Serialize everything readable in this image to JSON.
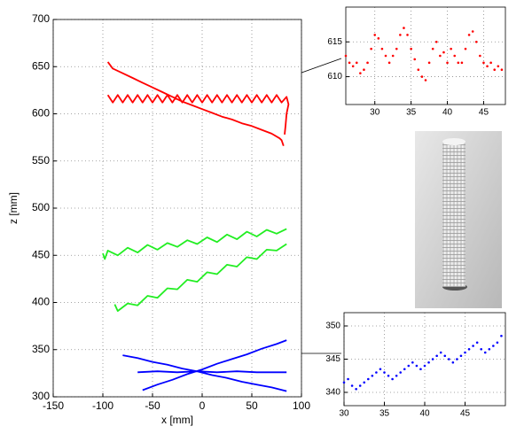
{
  "chart_data": [
    {
      "type": "line",
      "xlabel": "x [mm]",
      "ylabel": "z [mm]",
      "xlim": [
        -150,
        100
      ],
      "xticks": [
        -150,
        -100,
        -50,
        0,
        50,
        100
      ],
      "ylim": [
        300,
        700
      ],
      "yticks": [
        300,
        350,
        400,
        450,
        500,
        550,
        600,
        650,
        700
      ],
      "grid": true,
      "series": [
        {
          "color": "#ff0000",
          "x": [
            -95,
            -90,
            -80,
            -70,
            -60,
            -50,
            -40,
            -30,
            -20,
            -10,
            0,
            10,
            20,
            30,
            40,
            50,
            60,
            70,
            78,
            80,
            82,
            null,
            -95,
            -90,
            -85,
            -80,
            -75,
            -70,
            -65,
            -60,
            -55,
            -50,
            -45,
            -40,
            -35,
            -30,
            -25,
            -20,
            -15,
            -10,
            -5,
            0,
            5,
            10,
            15,
            20,
            25,
            30,
            35,
            40,
            45,
            50,
            55,
            60,
            65,
            70,
            75,
            80,
            85,
            87,
            85,
            84,
            83
          ],
          "y": [
            655,
            648,
            643,
            638,
            633,
            628,
            623,
            618,
            613,
            609,
            605,
            601,
            597,
            594,
            590,
            587,
            583,
            579,
            574,
            572,
            566,
            null,
            620,
            612,
            620,
            612,
            620,
            612,
            620,
            612,
            620,
            612,
            620,
            612,
            620,
            612,
            620,
            612,
            620,
            612,
            620,
            612,
            620,
            612,
            620,
            612,
            620,
            612,
            620,
            612,
            620,
            612,
            620,
            612,
            620,
            612,
            620,
            612,
            618,
            610,
            600,
            588,
            578
          ]
        },
        {
          "color": "#22ee22",
          "x": [
            -100,
            -98,
            -95,
            -85,
            -75,
            -65,
            -55,
            -45,
            -35,
            -25,
            -15,
            -5,
            5,
            15,
            25,
            35,
            45,
            55,
            65,
            75,
            85,
            null,
            -88,
            -85,
            -75,
            -65,
            -55,
            -45,
            -35,
            -25,
            -15,
            -5,
            5,
            15,
            25,
            35,
            45,
            55,
            65,
            75,
            85
          ],
          "y": [
            452,
            446,
            455,
            450,
            458,
            453,
            461,
            456,
            463,
            459,
            466,
            462,
            469,
            464,
            472,
            467,
            475,
            470,
            477,
            473,
            478,
            null,
            398,
            391,
            399,
            397,
            407,
            405,
            415,
            414,
            424,
            422,
            432,
            430,
            440,
            438,
            448,
            446,
            456,
            455,
            462
          ]
        },
        {
          "color": "#0000ff",
          "x": [
            -60,
            -45,
            -30,
            -15,
            0,
            15,
            30,
            45,
            60,
            75,
            85,
            null,
            -80,
            -65,
            -50,
            -35,
            -20,
            -5,
            10,
            25,
            40,
            55,
            70,
            85,
            null,
            -65,
            -45,
            -25,
            -5,
            15,
            35,
            55,
            85
          ],
          "y": [
            307,
            313,
            318,
            324,
            329,
            335,
            340,
            345,
            351,
            356,
            360,
            null,
            344,
            341,
            337,
            334,
            330,
            327,
            323,
            320,
            316,
            313,
            310,
            306,
            null,
            326,
            327,
            326,
            327,
            326,
            327,
            326,
            326
          ]
        }
      ]
    },
    {
      "type": "scatter",
      "xlim": [
        26,
        48
      ],
      "xticks": [
        30,
        35,
        40,
        45
      ],
      "ylim": [
        606,
        620
      ],
      "yticks": [
        610,
        615
      ],
      "grid": true,
      "series": [
        {
          "color": "#ff0000",
          "x": [
            26,
            26.5,
            27,
            27.5,
            28,
            28.5,
            29,
            29.5,
            30,
            30.5,
            31,
            31.5,
            32,
            32.5,
            33,
            33.5,
            34,
            34.5,
            35,
            35.5,
            36,
            36.5,
            37,
            37.5,
            38,
            38.5,
            39,
            39.5,
            40,
            40.5,
            41,
            41.5,
            42,
            42.5,
            43,
            43.5,
            44,
            44.5,
            45,
            45.5,
            46,
            46.5,
            47,
            47.5
          ],
          "y": [
            613,
            612,
            611.5,
            612,
            610.5,
            611,
            612,
            614,
            616,
            615.5,
            614,
            613,
            612,
            613,
            614,
            616,
            617,
            616,
            614,
            612.5,
            611,
            610,
            609.5,
            612,
            614,
            615,
            613,
            613.5,
            612,
            614,
            613,
            612,
            612,
            614,
            616,
            616.5,
            615,
            613,
            612,
            611.5,
            612,
            611,
            611.5,
            611
          ]
        }
      ]
    },
    {
      "type": "scatter",
      "xlim": [
        30,
        50
      ],
      "xticks": [
        30,
        35,
        40,
        45
      ],
      "ylim": [
        338,
        352
      ],
      "yticks": [
        340,
        345,
        350
      ],
      "grid": true,
      "series": [
        {
          "color": "#0000ff",
          "x": [
            30,
            30.5,
            31,
            31.5,
            32,
            32.5,
            33,
            33.5,
            34,
            34.5,
            35,
            35.5,
            36,
            36.5,
            37,
            37.5,
            38,
            38.5,
            39,
            39.5,
            40,
            40.5,
            41,
            41.5,
            42,
            42.5,
            43,
            43.5,
            44,
            44.5,
            45,
            45.5,
            46,
            46.5,
            47,
            47.5,
            48,
            48.5,
            49,
            49.5
          ],
          "y": [
            341.5,
            342,
            341,
            340.5,
            341,
            341.5,
            342,
            342.5,
            343,
            343.5,
            343,
            342.5,
            342,
            342.5,
            343,
            343.5,
            344,
            344.5,
            344,
            343.5,
            344,
            344.5,
            345,
            345.5,
            346,
            345.5,
            345,
            344.5,
            345,
            345.5,
            346,
            346.5,
            347,
            347.5,
            346.5,
            346,
            346.5,
            347,
            347.5,
            348.5
          ]
        }
      ]
    }
  ]
}
